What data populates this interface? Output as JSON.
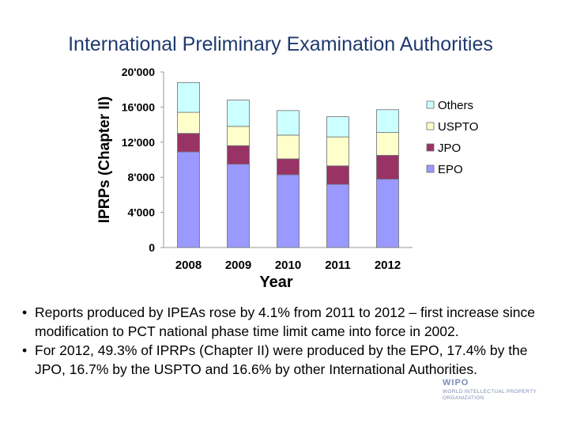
{
  "slide": {
    "title": "International Preliminary Examination Authorities"
  },
  "chart_data": {
    "type": "bar",
    "stacked": true,
    "categories": [
      "2008",
      "2009",
      "2010",
      "2011",
      "2012"
    ],
    "series": [
      {
        "name": "EPO",
        "color": "#9999ff",
        "values": [
          10900,
          9500,
          8300,
          7200,
          7800
        ]
      },
      {
        "name": "JPO",
        "color": "#993366",
        "values": [
          2100,
          2100,
          1800,
          2100,
          2700
        ]
      },
      {
        "name": "USPTO",
        "color": "#ffffcc",
        "values": [
          2400,
          2200,
          2700,
          3300,
          2600
        ]
      },
      {
        "name": "Others",
        "color": "#ccffff",
        "values": [
          3400,
          3000,
          2800,
          2300,
          2600
        ]
      }
    ],
    "ylabel": "IPRPs (Chapter II)",
    "xlabel": "Year",
    "ylim": [
      0,
      20000
    ],
    "yticks": [
      0,
      4000,
      8000,
      12000,
      16000,
      20000
    ],
    "ytick_labels": [
      "0",
      "4'000",
      "8'000",
      "12'000",
      "16'000",
      "20'000"
    ],
    "legend_position": "right",
    "legend_order": [
      "Others",
      "USPTO",
      "JPO",
      "EPO"
    ],
    "grid": false
  },
  "bullets": [
    "Reports produced by IPEAs rose by 4.1% from 2011 to 2012 – first increase since modification to PCT national phase time limit came into force in 2002.",
    "For 2012, 49.3% of IPRPs (Chapter II) were produced by the EPO, 17.4% by the JPO, 16.7% by the USPTO and 16.6% by other International  Authorities."
  ],
  "logo": {
    "name": "WIPO",
    "subtitle": "WORLD INTELLECTUAL PROPERTY ORGANIZATION",
    "icon": "wipo-logo"
  }
}
